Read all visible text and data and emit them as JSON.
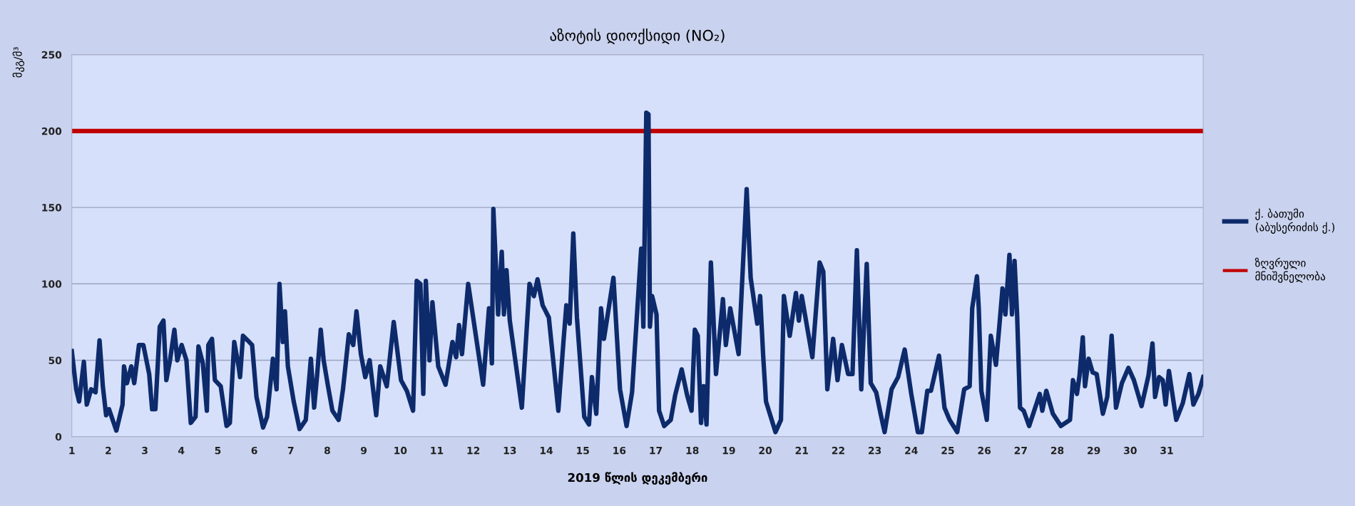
{
  "chart_data": {
    "type": "line",
    "title": "აზოტის დიოქსიდი (NO₂)",
    "xlabel": "2019 წლის დეკემბერი",
    "ylabel": "მკგ/მ³",
    "xlim": [
      1,
      32
    ],
    "xticks": [
      1,
      2,
      3,
      4,
      5,
      6,
      7,
      8,
      9,
      10,
      11,
      12,
      13,
      14,
      15,
      16,
      17,
      18,
      19,
      20,
      21,
      22,
      23,
      24,
      25,
      26,
      27,
      28,
      29,
      30,
      31
    ],
    "ylim": [
      0,
      250
    ],
    "yticks": [
      0,
      50,
      100,
      150,
      200,
      250
    ],
    "grid": "y",
    "legend": "right",
    "marker": "none",
    "line_style": "solid",
    "series": [
      {
        "name": "ქ. ბათუმი (აბუსერიძის ქ.)",
        "color": "#0d2a6b",
        "x": [
          1.0,
          1.12,
          1.2,
          1.33,
          1.41,
          1.53,
          1.65,
          1.76,
          1.85,
          1.94,
          2.02,
          2.22,
          2.39,
          2.43,
          2.51,
          2.63,
          2.71,
          2.84,
          2.96,
          3.12,
          3.2,
          3.29,
          3.41,
          3.51,
          3.59,
          3.69,
          3.81,
          3.89,
          4.01,
          4.14,
          4.26,
          4.39,
          4.47,
          4.59,
          4.7,
          4.74,
          4.84,
          4.92,
          5.08,
          5.24,
          5.33,
          5.45,
          5.57,
          5.61,
          5.69,
          5.82,
          5.94,
          6.06,
          6.24,
          6.35,
          6.51,
          6.61,
          6.69,
          6.78,
          6.84,
          6.92,
          7.08,
          7.24,
          7.41,
          7.55,
          7.64,
          7.72,
          7.82,
          7.9,
          8.02,
          8.14,
          8.31,
          8.43,
          8.59,
          8.71,
          8.8,
          8.92,
          9.04,
          9.16,
          9.34,
          9.45,
          9.63,
          9.82,
          10.02,
          10.18,
          10.35,
          10.45,
          10.55,
          10.63,
          10.7,
          10.8,
          10.88,
          11.04,
          11.24,
          11.43,
          11.53,
          11.61,
          11.69,
          11.86,
          12.27,
          12.43,
          12.51,
          12.55,
          12.68,
          12.78,
          12.84,
          12.91,
          13.0,
          13.33,
          13.54,
          13.66,
          13.76,
          13.9,
          14.07,
          14.33,
          14.47,
          14.55,
          14.64,
          14.74,
          14.84,
          15.04,
          15.17,
          15.25,
          15.37,
          15.5,
          15.58,
          15.84,
          16.02,
          16.2,
          16.35,
          16.6,
          16.66,
          16.74,
          16.8,
          16.84,
          16.9,
          17.02,
          17.09,
          17.23,
          17.41,
          17.53,
          17.71,
          17.86,
          17.98,
          18.07,
          18.15,
          18.24,
          18.31,
          18.39,
          18.51,
          18.65,
          18.84,
          18.92,
          19.04,
          19.27,
          19.49,
          19.6,
          19.78,
          19.86,
          19.94,
          20.02,
          20.28,
          20.43,
          20.51,
          20.67,
          20.84,
          20.92,
          21.0,
          21.29,
          21.49,
          21.59,
          21.7,
          21.86,
          21.98,
          22.1,
          22.27,
          22.39,
          22.51,
          22.63,
          22.78,
          22.89,
          23.04,
          23.16,
          23.27,
          23.46,
          23.64,
          23.82,
          24.0,
          24.18,
          24.29,
          24.44,
          24.54,
          24.76,
          24.91,
          25.05,
          25.26,
          25.45,
          25.6,
          25.67,
          25.8,
          25.85,
          25.92,
          26.07,
          26.18,
          26.32,
          26.43,
          26.5,
          26.58,
          26.69,
          26.76,
          26.83,
          26.9,
          26.98,
          27.08,
          27.23,
          27.52,
          27.59,
          27.7,
          27.88,
          28.1,
          28.35,
          28.43,
          28.54,
          28.61,
          28.7,
          28.76,
          28.86,
          28.97,
          29.08,
          29.25,
          29.37,
          29.49,
          29.61,
          29.77,
          29.95,
          30.1,
          30.31,
          30.5,
          30.61,
          30.68,
          30.79,
          30.89,
          30.97,
          31.06,
          31.26,
          31.44,
          31.62,
          31.73,
          31.87,
          32.0
        ],
        "values": [
          56,
          31,
          23,
          49,
          21,
          31,
          29,
          63,
          33,
          14,
          18,
          4,
          21,
          46,
          35,
          46,
          35,
          60,
          60,
          41,
          18,
          18,
          72,
          76,
          37,
          50,
          70,
          50,
          60,
          50,
          9,
          13,
          59,
          48,
          17,
          60,
          64,
          37,
          33,
          7,
          9,
          62,
          46,
          39,
          66,
          63,
          60,
          26,
          6,
          13,
          51,
          31,
          100,
          62,
          82,
          46,
          23,
          5,
          11,
          51,
          19,
          40,
          70,
          50,
          33,
          17,
          11,
          31,
          67,
          60,
          82,
          54,
          39,
          50,
          14,
          46,
          33,
          75,
          37,
          30,
          17,
          102,
          100,
          28,
          102,
          50,
          88,
          46,
          34,
          62,
          52,
          73,
          54,
          100,
          34,
          84,
          48,
          149,
          80,
          121,
          80,
          109,
          76,
          19,
          100,
          92,
          103,
          86,
          78,
          17,
          62,
          86,
          74,
          133,
          78,
          13,
          8,
          39,
          15,
          84,
          64,
          104,
          31,
          7,
          29,
          123,
          72,
          212,
          211,
          72,
          92,
          80,
          17,
          7,
          11,
          27,
          44,
          27,
          17,
          70,
          66,
          9,
          33,
          8,
          114,
          41,
          90,
          60,
          84,
          54,
          162,
          104,
          74,
          92,
          54,
          23,
          3,
          11,
          92,
          66,
          94,
          76,
          92,
          52,
          114,
          108,
          31,
          64,
          37,
          60,
          41,
          41,
          122,
          31,
          113,
          35,
          29,
          15,
          3,
          31,
          39,
          57,
          28,
          3,
          3,
          30,
          30,
          53,
          19,
          11,
          3,
          31,
          33,
          84,
          105,
          84,
          30,
          11,
          66,
          47,
          77,
          97,
          80,
          119,
          80,
          115,
          80,
          19,
          17,
          7,
          28,
          17,
          30,
          15,
          7,
          11,
          37,
          28,
          40,
          65,
          33,
          51,
          42,
          41,
          15,
          26,
          66,
          19,
          35,
          45,
          37,
          20,
          40,
          61,
          26,
          39,
          37,
          21,
          43,
          11,
          22,
          41,
          21,
          28,
          39
        ]
      }
    ],
    "ref_lines": [
      {
        "axis": "y",
        "value": 200,
        "label": "ზღვრული მნიშვნელობა",
        "color": "#c00000",
        "line_style": "solid"
      }
    ]
  }
}
